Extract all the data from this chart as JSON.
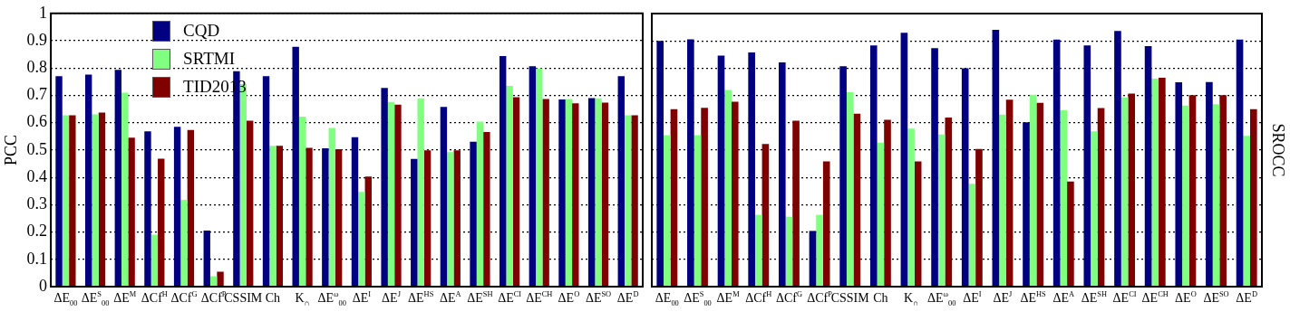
{
  "chart_data": [
    {
      "type": "bar",
      "ylabel": "PCC",
      "categories": [
        "ΔE$_{00}$",
        "ΔE$^{S}$$_{00}$",
        "ΔE$^{M}$",
        "ΔCf$^{H}$",
        "ΔCf$^{G}$",
        "ΔCf$^{P}$",
        "CSSIM",
        "Ch",
        "K$_{∩}$",
        "ΔE$^{ω}$$_{00}$",
        "ΔE$^{I}$",
        "ΔE$^{J}$",
        "ΔE$^{HS}$",
        "ΔE$^{A}$",
        "ΔE$^{SH}$",
        "ΔE$^{CI}$",
        "ΔE$^{CH}$",
        "ΔE$^{O}$",
        "ΔE$^{SO}$",
        "ΔE$^{D}$"
      ],
      "series": [
        {
          "name": "CQD",
          "color": "#000080",
          "values": [
            0.77,
            0.776,
            0.793,
            0.568,
            0.585,
            0.205,
            0.788,
            0.77,
            0.878,
            0.506,
            0.547,
            0.727,
            0.467,
            0.658,
            0.53,
            0.844,
            0.807,
            0.685,
            0.69,
            0.77
          ]
        },
        {
          "name": "SRTMI",
          "color": "#80ff80",
          "values": [
            0.627,
            0.63,
            0.71,
            0.19,
            0.318,
            0.038,
            0.741,
            0.515,
            0.622,
            0.581,
            0.347,
            0.676,
            0.689,
            0.492,
            0.604,
            0.735,
            0.798,
            0.687,
            0.689,
            0.627
          ]
        },
        {
          "name": "TID2013",
          "color": "#800000",
          "values": [
            0.627,
            0.637,
            0.545,
            0.468,
            0.573,
            0.055,
            0.607,
            0.515,
            0.508,
            0.503,
            0.403,
            0.666,
            0.499,
            0.499,
            0.566,
            0.693,
            0.687,
            0.671,
            0.673,
            0.627
          ]
        }
      ],
      "ylim": [
        0,
        1
      ],
      "yticks": [
        0,
        0.1,
        0.2,
        0.3,
        0.4,
        0.5,
        0.6,
        0.7,
        0.8,
        0.9,
        1
      ],
      "grid": "y",
      "line_style": "dotted",
      "legend": "top left"
    },
    {
      "type": "bar",
      "ylabel": "SROCC",
      "categories": [
        "ΔE$_{00}$",
        "ΔE$^{S}$$_{00}$",
        "ΔE$^{M}$",
        "ΔCf$^{H}$",
        "ΔCf$^{G}$",
        "ΔCf$^{P}$",
        "CSSIM",
        "Ch",
        "K$_{∩}$",
        "ΔE$^{ω}$$_{00}$",
        "ΔE$^{I}$",
        "ΔE$^{J}$",
        "ΔE$^{HS}$",
        "ΔE$^{A}$",
        "ΔE$^{SH}$",
        "ΔE$^{CI}$",
        "ΔE$^{CH}$",
        "ΔE$^{O}$",
        "ΔE$^{SO}$",
        "ΔE$^{D}$"
      ],
      "series": [
        {
          "color": "#000080",
          "values": [
            0.9,
            0.906,
            0.846,
            0.858,
            0.821,
            0.204,
            0.807,
            0.883,
            0.93,
            0.873,
            0.8,
            0.94,
            0.602,
            0.905,
            0.883,
            0.936,
            0.881,
            0.748,
            0.749,
            0.905
          ]
        },
        {
          "color": "#80ff80",
          "values": [
            0.555,
            0.555,
            0.72,
            0.263,
            0.256,
            0.263,
            0.712,
            0.527,
            0.579,
            0.557,
            0.377,
            0.63,
            0.703,
            0.646,
            0.569,
            0.693,
            0.762,
            0.663,
            0.668,
            0.552
          ]
        },
        {
          "color": "#800000",
          "values": [
            0.65,
            0.655,
            0.677,
            0.522,
            0.608,
            0.459,
            0.633,
            0.611,
            0.459,
            0.619,
            0.504,
            0.685,
            0.673,
            0.385,
            0.654,
            0.707,
            0.765,
            0.701,
            0.701,
            0.65
          ]
        }
      ],
      "ylim": [
        0,
        1
      ],
      "yticks": [
        0,
        0.1,
        0.2,
        0.3,
        0.4,
        0.5,
        0.6,
        0.7,
        0.8,
        0.9,
        1
      ],
      "grid": "y",
      "line_style": "dotted",
      "tick_labels": "x"
    }
  ]
}
